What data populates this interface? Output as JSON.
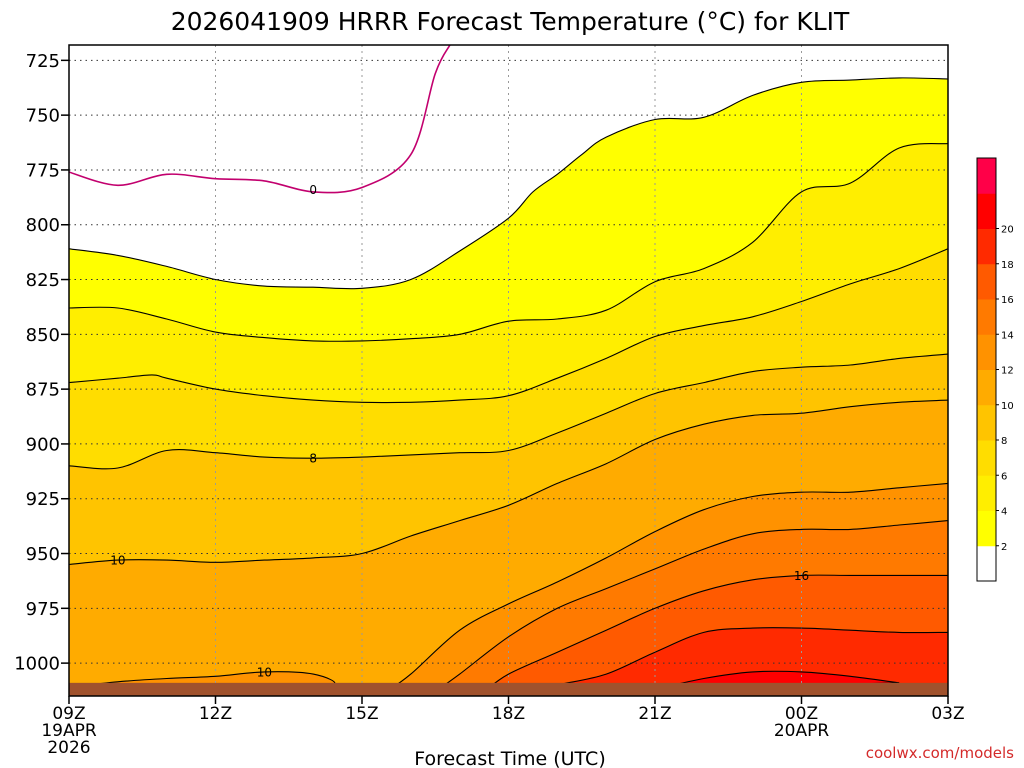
{
  "chart_data": {
    "type": "heatmap",
    "title": "2026041909 HRRR Forecast Temperature (°C) for KLIT",
    "xlabel": "Forecast Time (UTC)",
    "ylabel": "",
    "credit": "coolwx.com/models",
    "x_unit": "hours since 09Z 19APR 2026",
    "xlim": [
      0,
      18
    ],
    "ylim": [
      1015,
      718
    ],
    "y_ticks": [
      725,
      750,
      775,
      800,
      825,
      850,
      875,
      900,
      925,
      950,
      975,
      1000
    ],
    "x_ticks": [
      {
        "hour": 0,
        "label": "09Z",
        "sub1": "19APR",
        "sub2": "2026"
      },
      {
        "hour": 3,
        "label": "12Z",
        "sub1": "",
        "sub2": ""
      },
      {
        "hour": 6,
        "label": "15Z",
        "sub1": "",
        "sub2": ""
      },
      {
        "hour": 9,
        "label": "18Z",
        "sub1": "",
        "sub2": ""
      },
      {
        "hour": 12,
        "label": "21Z",
        "sub1": "",
        "sub2": ""
      },
      {
        "hour": 15,
        "label": "00Z",
        "sub1": "20APR",
        "sub2": ""
      },
      {
        "hour": 18,
        "label": "03Z",
        "sub1": "",
        "sub2": ""
      }
    ],
    "grid": true,
    "colorbar": {
      "levels": [
        2,
        4,
        6,
        8,
        10,
        12,
        14,
        16,
        18,
        20
      ],
      "colors": [
        "#ffffff",
        "#ffff00",
        "#ffee00",
        "#ffdd00",
        "#ffc400",
        "#ffab00",
        "#ff9200",
        "#ff7a00",
        "#ff5a00",
        "#ff2a00",
        "#ff0000",
        "#ff0048"
      ]
    },
    "surface_pressure": 1009,
    "contours": [
      {
        "level": 0,
        "color": "#c2006e",
        "label_at": [
          5,
          784
        ],
        "points": [
          [
            0,
            776
          ],
          [
            1,
            782
          ],
          [
            2,
            777
          ],
          [
            3,
            779
          ],
          [
            4,
            780
          ],
          [
            5,
            785
          ],
          [
            6,
            783
          ],
          [
            7,
            768
          ],
          [
            7.5,
            731
          ],
          [
            7.8,
            718
          ]
        ]
      },
      {
        "level": 2,
        "points": [
          [
            0,
            811
          ],
          [
            1,
            814
          ],
          [
            2,
            819
          ],
          [
            3,
            825
          ],
          [
            4,
            828
          ],
          [
            5,
            828.5
          ],
          [
            6,
            829
          ],
          [
            7,
            825
          ],
          [
            8,
            812
          ],
          [
            9,
            797
          ],
          [
            9.5,
            785
          ],
          [
            10,
            777
          ],
          [
            10.5,
            768
          ],
          [
            11,
            760
          ],
          [
            12,
            752
          ],
          [
            13,
            751
          ],
          [
            14,
            741
          ],
          [
            15,
            735
          ],
          [
            16,
            734
          ],
          [
            17,
            733
          ],
          [
            18,
            733.5
          ]
        ]
      },
      {
        "level": 4,
        "points": [
          [
            0,
            838
          ],
          [
            1,
            838
          ],
          [
            2,
            843
          ],
          [
            3,
            849
          ],
          [
            4,
            851.5
          ],
          [
            5,
            853
          ],
          [
            6,
            853
          ],
          [
            7,
            852
          ],
          [
            8,
            850
          ],
          [
            9,
            844
          ],
          [
            10,
            843
          ],
          [
            11,
            839
          ],
          [
            12,
            826
          ],
          [
            13,
            820
          ],
          [
            14,
            808
          ],
          [
            15,
            785
          ],
          [
            16,
            781
          ],
          [
            17,
            765
          ],
          [
            18,
            763
          ]
        ]
      },
      {
        "level": 6,
        "points": [
          [
            0,
            872
          ],
          [
            1,
            870
          ],
          [
            1.7,
            868.5
          ],
          [
            2,
            870
          ],
          [
            3,
            875
          ],
          [
            4,
            878
          ],
          [
            5,
            880
          ],
          [
            6,
            881
          ],
          [
            7,
            881
          ],
          [
            8,
            880
          ],
          [
            9,
            878
          ],
          [
            10,
            870
          ],
          [
            11,
            861
          ],
          [
            12,
            851
          ],
          [
            13,
            846
          ],
          [
            14,
            842
          ],
          [
            15,
            835
          ],
          [
            16,
            827
          ],
          [
            17,
            820
          ],
          [
            18,
            811
          ]
        ]
      },
      {
        "level": 8,
        "label_at": [
          5,
          906.5
        ],
        "points": [
          [
            0,
            910
          ],
          [
            1,
            911
          ],
          [
            2,
            903
          ],
          [
            3,
            904
          ],
          [
            4,
            906
          ],
          [
            5,
            906.5
          ],
          [
            6,
            906
          ],
          [
            7,
            905
          ],
          [
            8,
            904
          ],
          [
            9,
            903
          ],
          [
            10,
            895
          ],
          [
            11,
            886
          ],
          [
            12,
            877
          ],
          [
            13,
            872
          ],
          [
            14,
            867
          ],
          [
            15,
            865
          ],
          [
            16,
            864
          ],
          [
            17,
            861
          ],
          [
            18,
            859
          ]
        ]
      },
      {
        "level": 10,
        "label_at": [
          1,
          953
        ],
        "points": [
          [
            0,
            955
          ],
          [
            1,
            953
          ],
          [
            2,
            953
          ],
          [
            3,
            954
          ],
          [
            4,
            953
          ],
          [
            5,
            952
          ],
          [
            6,
            950
          ],
          [
            7,
            942
          ],
          [
            8,
            935
          ],
          [
            9,
            928
          ],
          [
            10,
            918
          ],
          [
            11,
            909
          ],
          [
            12,
            898
          ],
          [
            13,
            891
          ],
          [
            14,
            887
          ],
          [
            15,
            886
          ],
          [
            16,
            883
          ],
          [
            17,
            881
          ],
          [
            18,
            880
          ]
        ]
      },
      {
        "level": 12,
        "points": [
          [
            6.5,
            1013
          ],
          [
            7,
            1005
          ],
          [
            8,
            985
          ],
          [
            9,
            973
          ],
          [
            10,
            963
          ],
          [
            11,
            952
          ],
          [
            12,
            940
          ],
          [
            13,
            930
          ],
          [
            14,
            924
          ],
          [
            15,
            922
          ],
          [
            16,
            922
          ],
          [
            17,
            920
          ],
          [
            18,
            918
          ]
        ]
      },
      {
        "level": 14,
        "points": [
          [
            7.5,
            1013
          ],
          [
            8,
            1005
          ],
          [
            9,
            988
          ],
          [
            10,
            975
          ],
          [
            11,
            966
          ],
          [
            12,
            957
          ],
          [
            13,
            948
          ],
          [
            14,
            941
          ],
          [
            15,
            939
          ],
          [
            16,
            939
          ],
          [
            17,
            937
          ],
          [
            18,
            935
          ]
        ]
      },
      {
        "level": 16,
        "label_at": [
          15,
          960
        ],
        "points": [
          [
            8.5,
            1013
          ],
          [
            9,
            1005
          ],
          [
            10,
            995
          ],
          [
            11,
            985
          ],
          [
            12,
            975
          ],
          [
            13,
            967
          ],
          [
            14,
            962
          ],
          [
            15,
            960
          ],
          [
            16,
            960
          ],
          [
            17,
            960
          ],
          [
            18,
            960
          ]
        ]
      },
      {
        "level": 18,
        "points": [
          [
            9.5,
            1013
          ],
          [
            10,
            1010
          ],
          [
            11,
            1005
          ],
          [
            12,
            995
          ],
          [
            13,
            986
          ],
          [
            14,
            984
          ],
          [
            15,
            984
          ],
          [
            16,
            985
          ],
          [
            17,
            986
          ],
          [
            18,
            986
          ]
        ]
      },
      {
        "level": 20,
        "points": [
          [
            12,
            1012
          ],
          [
            13,
            1007
          ],
          [
            14,
            1004
          ],
          [
            15,
            1004
          ],
          [
            16,
            1006
          ],
          [
            17,
            1009
          ]
        ]
      }
    ],
    "annotations": [
      {
        "text": "10",
        "level": 10,
        "at": [
          4,
          1004
        ]
      }
    ]
  }
}
